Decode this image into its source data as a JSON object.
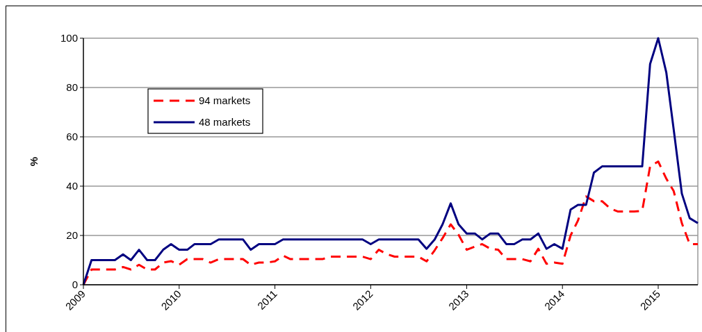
{
  "chart_data": {
    "type": "line",
    "ylabel": "%",
    "x": [
      "2009-01",
      "2009-02",
      "2009-03",
      "2009-04",
      "2009-05",
      "2009-06",
      "2009-07",
      "2009-08",
      "2009-09",
      "2009-10",
      "2009-11",
      "2009-12",
      "2010-01",
      "2010-02",
      "2010-03",
      "2010-04",
      "2010-05",
      "2010-06",
      "2010-07",
      "2010-08",
      "2010-09",
      "2010-10",
      "2010-11",
      "2010-12",
      "2011-01",
      "2011-02",
      "2011-03",
      "2011-04",
      "2011-05",
      "2011-06",
      "2011-07",
      "2011-08",
      "2011-09",
      "2011-10",
      "2011-11",
      "2011-12",
      "2012-01",
      "2012-02",
      "2012-03",
      "2012-04",
      "2012-05",
      "2012-06",
      "2012-07",
      "2012-08",
      "2012-09",
      "2012-10",
      "2012-11",
      "2012-12",
      "2013-01",
      "2013-02",
      "2013-03",
      "2013-04",
      "2013-05",
      "2013-06",
      "2013-07",
      "2013-08",
      "2013-09",
      "2013-10",
      "2013-11",
      "2013-12",
      "2014-01",
      "2014-02",
      "2014-03",
      "2014-04",
      "2014-05",
      "2014-06",
      "2014-07",
      "2014-08",
      "2014-09",
      "2014-10",
      "2014-11",
      "2014-12",
      "2015-01",
      "2015-02",
      "2015-03",
      "2015-04",
      "2015-05",
      "2015-06"
    ],
    "series": [
      {
        "name": "94 markets",
        "color": "#ff0000",
        "line_style": "dashed",
        "values": [
          0,
          6.2,
          6.2,
          6.2,
          6.2,
          7.2,
          6.2,
          8.1,
          6.2,
          6.2,
          9,
          9.6,
          8.1,
          10.4,
          10.4,
          10.4,
          9,
          10.4,
          10.4,
          10.4,
          10.4,
          8.1,
          9,
          9,
          9.5,
          11.8,
          10.4,
          10.4,
          10.4,
          10.4,
          10.4,
          11.4,
          11.4,
          11.4,
          11.4,
          11.4,
          10.4,
          14.2,
          12.5,
          11.4,
          11.4,
          11.4,
          11.4,
          9.5,
          14,
          18.9,
          24.5,
          20.3,
          14.2,
          15.5,
          16.5,
          14.6,
          14.2,
          10.4,
          10.4,
          10.4,
          9.5,
          14.6,
          8.5,
          9,
          8.5,
          20,
          26,
          35.8,
          33.9,
          33.9,
          31,
          29.7,
          29.7,
          29.7,
          30,
          48,
          50,
          43,
          38,
          25,
          16.5,
          16.5
        ]
      },
      {
        "name": "48 markets",
        "color": "#000080",
        "line_style": "solid",
        "values": [
          0,
          10,
          10,
          10,
          10,
          12.3,
          10,
          14.2,
          10,
          10,
          14.2,
          16.5,
          14.2,
          14.2,
          16.5,
          16.5,
          16.5,
          18.4,
          18.4,
          18.4,
          18.4,
          14.2,
          16.5,
          16.5,
          16.5,
          18.4,
          18.4,
          18.4,
          18.4,
          18.4,
          18.4,
          18.4,
          18.4,
          18.4,
          18.4,
          18.4,
          16.5,
          18.4,
          18.4,
          18.4,
          18.4,
          18.4,
          18.4,
          14.6,
          18.4,
          24.5,
          33,
          24.5,
          20.8,
          20.8,
          18.4,
          20.8,
          20.8,
          16.5,
          16.5,
          18.4,
          18.4,
          20.8,
          14.6,
          16.5,
          14.6,
          30.5,
          32.4,
          32.4,
          45.5,
          48,
          48,
          48,
          48,
          48,
          48,
          89.5,
          100,
          86,
          63,
          37,
          27,
          25
        ]
      }
    ],
    "xlim": [
      "2009-01",
      "2015-06"
    ],
    "xticks": [
      "2009",
      "2010",
      "2011",
      "2012",
      "2013",
      "2014",
      "2015"
    ],
    "ylim": [
      0,
      100
    ],
    "yticks": [
      0,
      20,
      40,
      60,
      80,
      100
    ],
    "grid": "y",
    "legend": "top left",
    "marker": "none"
  }
}
